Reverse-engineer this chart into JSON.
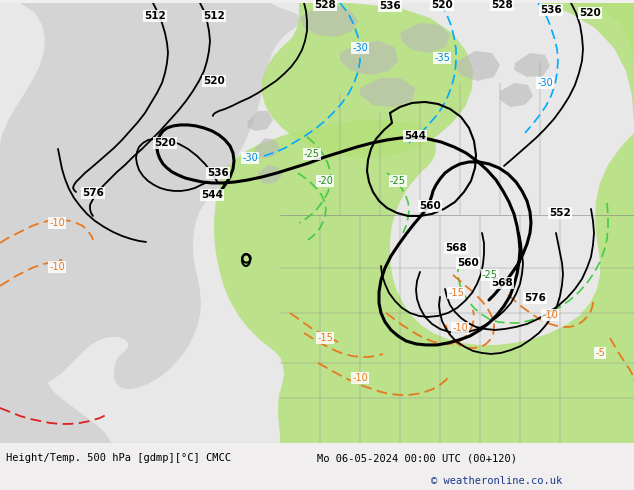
{
  "title_left": "Height/Temp. 500 hPa [gdmp][°C] CMCC",
  "title_right": "Mo 06-05-2024 00:00 UTC (00+120)",
  "copyright": "© weatheronline.co.uk",
  "ocean_color": "#d4d4d4",
  "land_color": "#e8e8e8",
  "green_color": "#b4e07a",
  "terrain_color": "#c0c0c0",
  "bottom_bg": "#f0eeee",
  "title_fontsize": 7.5,
  "copyright_color": "#1a3a8a"
}
